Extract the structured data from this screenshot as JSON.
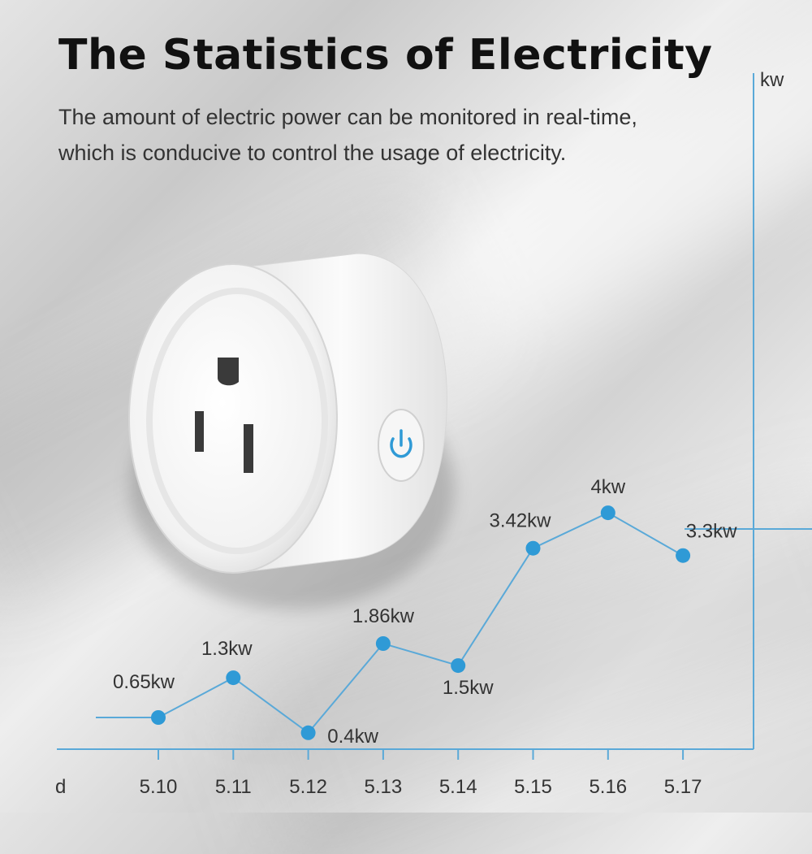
{
  "header": {
    "title": "The Statistics of Electricity",
    "subtitle_line1": "The amount of electric power can be monitored in real-time,",
    "subtitle_line2": "which is conducive to control the usage of electricity."
  },
  "colors": {
    "line": "#5aa9d8",
    "marker": "#2f9ad6",
    "text": "#333333"
  },
  "product": {
    "icon": "smart-plug-icon",
    "button_icon": "power-icon"
  },
  "chart_data": {
    "type": "line",
    "x": [
      "5.10",
      "5.11",
      "5.12",
      "5.13",
      "5.14",
      "5.15",
      "5.16",
      "5.17"
    ],
    "values": [
      0.65,
      1.3,
      0.4,
      1.86,
      1.5,
      3.42,
      4,
      3.3
    ],
    "data_labels": [
      "0.65kw",
      "1.3kw",
      "0.4kw",
      "1.86kw",
      "1.5kw",
      "3.42kw",
      "4kw",
      "3.3kw"
    ],
    "xlabel": "d",
    "ylabel": "kw",
    "grid": false
  }
}
